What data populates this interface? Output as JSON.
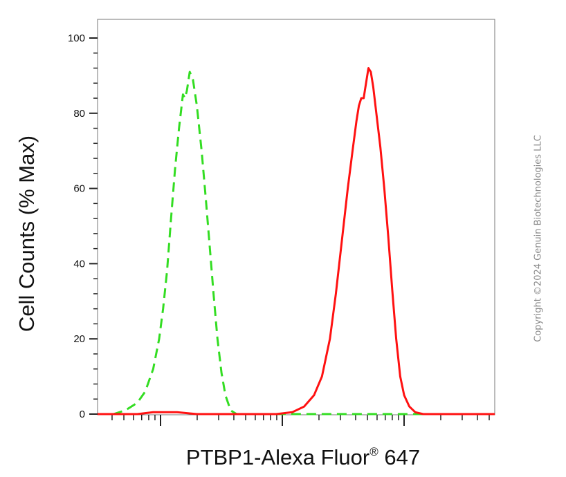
{
  "chart_data": {
    "type": "line",
    "xlabel": "PTBP1-Alexa Fluor",
    "xlabel_superscript": "®",
    "xlabel_suffix": " 647",
    "ylabel": "Cell Counts (% Max)",
    "ylim": [
      0,
      100
    ],
    "yticks": [
      "0",
      "20",
      "40",
      "60",
      "80",
      "100"
    ],
    "x_scale": "log",
    "x_tick_labels_shown": false,
    "grid": false,
    "series": [
      {
        "color": "#33dd22",
        "style": "dashed",
        "points": [
          [
            0.0,
            0
          ],
          [
            0.04,
            0
          ],
          [
            0.07,
            1
          ],
          [
            0.1,
            3
          ],
          [
            0.12,
            6
          ],
          [
            0.14,
            12
          ],
          [
            0.155,
            20
          ],
          [
            0.165,
            28
          ],
          [
            0.175,
            38
          ],
          [
            0.185,
            52
          ],
          [
            0.195,
            65
          ],
          [
            0.205,
            76
          ],
          [
            0.215,
            85
          ],
          [
            0.22,
            84
          ],
          [
            0.225,
            86
          ],
          [
            0.232,
            91
          ],
          [
            0.24,
            89
          ],
          [
            0.25,
            82
          ],
          [
            0.262,
            70
          ],
          [
            0.272,
            58
          ],
          [
            0.282,
            45
          ],
          [
            0.292,
            32
          ],
          [
            0.302,
            20
          ],
          [
            0.312,
            11
          ],
          [
            0.322,
            5
          ],
          [
            0.335,
            1
          ],
          [
            0.35,
            0
          ],
          [
            0.45,
            0
          ],
          [
            0.6,
            0
          ],
          [
            0.75,
            0
          ],
          [
            1.0,
            0
          ]
        ]
      },
      {
        "color": "#ff1111",
        "style": "solid",
        "points": [
          [
            0.0,
            0
          ],
          [
            0.1,
            0
          ],
          [
            0.14,
            0.5
          ],
          [
            0.2,
            0.5
          ],
          [
            0.25,
            0
          ],
          [
            0.45,
            0
          ],
          [
            0.49,
            0.5
          ],
          [
            0.52,
            2
          ],
          [
            0.545,
            5
          ],
          [
            0.565,
            10
          ],
          [
            0.585,
            20
          ],
          [
            0.6,
            32
          ],
          [
            0.615,
            46
          ],
          [
            0.63,
            60
          ],
          [
            0.642,
            70
          ],
          [
            0.652,
            78
          ],
          [
            0.658,
            82
          ],
          [
            0.664,
            84
          ],
          [
            0.67,
            84
          ],
          [
            0.676,
            88
          ],
          [
            0.682,
            92
          ],
          [
            0.688,
            91
          ],
          [
            0.694,
            87
          ],
          [
            0.702,
            80
          ],
          [
            0.712,
            71
          ],
          [
            0.722,
            60
          ],
          [
            0.732,
            47
          ],
          [
            0.742,
            33
          ],
          [
            0.752,
            20
          ],
          [
            0.762,
            10
          ],
          [
            0.772,
            5
          ],
          [
            0.785,
            2
          ],
          [
            0.8,
            0.5
          ],
          [
            0.82,
            0
          ],
          [
            1.0,
            0
          ]
        ]
      }
    ]
  },
  "copyright": "Copyright ©2024 Genuin Biotechnologies LLC"
}
